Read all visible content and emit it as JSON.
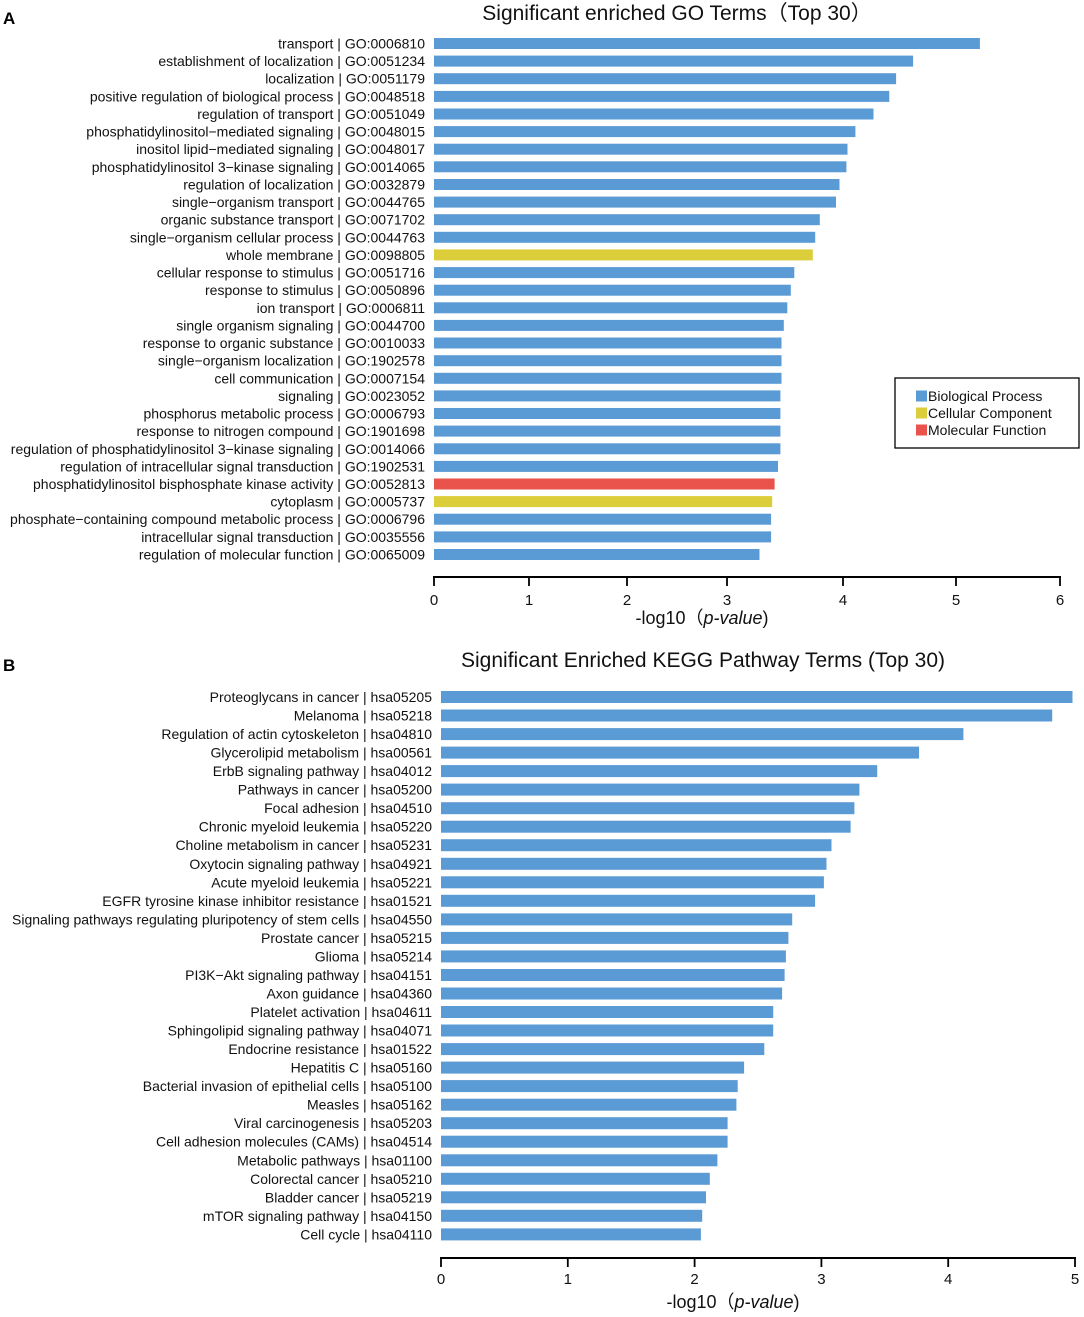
{
  "chart_data": [
    {
      "type": "bar",
      "orientation": "horizontal",
      "panel_label": "A",
      "title": "Significant enriched GO Terms（Top 30）",
      "xlabel": "-log10（p-value)",
      "ylabel": "",
      "xlim": [
        0,
        6
      ],
      "xticks": [
        0,
        1,
        2,
        3,
        4,
        5,
        6
      ],
      "legend_position": "right",
      "legend": [
        {
          "label": "Biological Process",
          "color": "#5b9bd5"
        },
        {
          "label": "Cellular Component",
          "color": "#dccd3a"
        },
        {
          "label": "Molecular Function",
          "color": "#e9534b"
        }
      ],
      "categories": [
        "transport | GO:0006810",
        "establishment of localization | GO:0051234",
        "localization | GO:0051179",
        "positive regulation of biological process | GO:0048518",
        "regulation of transport | GO:0051049",
        "phosphatidylinositol−mediated signaling | GO:0048015",
        "inositol lipid−mediated signaling | GO:0048017",
        "phosphatidylinositol 3−kinase signaling | GO:0014065",
        "regulation of localization | GO:0032879",
        "single−organism transport | GO:0044765",
        "organic substance transport | GO:0071702",
        "single−organism cellular process | GO:0044763",
        "whole membrane | GO:0098805",
        "cellular response to stimulus | GO:0051716",
        "response to stimulus | GO:0050896",
        "ion transport | GO:0006811",
        "single organism signaling | GO:0044700",
        "response to organic substance | GO:0010033",
        "single−organism localization | GO:1902578",
        "cell communication | GO:0007154",
        "signaling | GO:0023052",
        "phosphorus metabolic process | GO:0006793",
        "response to nitrogen compound | GO:1901698",
        "regulation of phosphatidylinositol 3−kinase signaling | GO:0014066",
        "regulation of intracellular signal transduction | GO:1902531",
        "phosphatidylinositol bisphosphate kinase activity | GO:0052813",
        "cytoplasm | GO:0005737",
        "phosphate−containing compound metabolic process | GO:0006796",
        "intracellular signal transduction | GO:0035556",
        "regulation of molecular function | GO:0065009"
      ],
      "values": [
        5.23,
        4.62,
        4.47,
        4.41,
        4.27,
        4.11,
        4.04,
        4.03,
        3.97,
        3.94,
        3.8,
        3.76,
        3.74,
        3.58,
        3.55,
        3.52,
        3.49,
        3.47,
        3.47,
        3.47,
        3.46,
        3.46,
        3.46,
        3.46,
        3.44,
        3.41,
        3.39,
        3.38,
        3.38,
        3.28
      ],
      "groups": [
        0,
        0,
        0,
        0,
        0,
        0,
        0,
        0,
        0,
        0,
        0,
        0,
        1,
        0,
        0,
        0,
        0,
        0,
        0,
        0,
        0,
        0,
        0,
        0,
        0,
        2,
        1,
        0,
        0,
        0
      ]
    },
    {
      "type": "bar",
      "orientation": "horizontal",
      "panel_label": "B",
      "title": "Significant Enriched KEGG Pathway Terms (Top 30)",
      "xlabel": "-log10（p-value)",
      "ylabel": "",
      "xlim": [
        0,
        5
      ],
      "xticks": [
        0,
        1,
        2,
        3,
        4,
        5
      ],
      "bar_color": "#5b9bd5",
      "categories": [
        "Proteoglycans in cancer | hsa05205",
        "Melanoma | hsa05218",
        "Regulation of actin cytoskeleton | hsa04810",
        "Glycerolipid metabolism | hsa00561",
        "ErbB signaling pathway | hsa04012",
        "Pathways in cancer | hsa05200",
        "Focal adhesion | hsa04510",
        "Chronic myeloid leukemia | hsa05220",
        "Choline metabolism in cancer | hsa05231",
        "Oxytocin signaling pathway | hsa04921",
        "Acute myeloid leukemia | hsa05221",
        "EGFR tyrosine kinase inhibitor resistance | hsa01521",
        "Signaling pathways regulating pluripotency of stem cells | hsa04550",
        "Prostate cancer | hsa05215",
        "Glioma | hsa05214",
        "PI3K−Akt signaling pathway | hsa04151",
        "Axon guidance | hsa04360",
        "Platelet activation | hsa04611",
        "Sphingolipid signaling pathway | hsa04071",
        "Endocrine resistance | hsa01522",
        "Hepatitis C | hsa05160",
        "Bacterial invasion of epithelial cells | hsa05100",
        "Measles | hsa05162",
        "Viral carcinogenesis | hsa05203",
        "Cell adhesion molecules (CAMs) | hsa04514",
        "Metabolic pathways | hsa01100",
        "Colorectal cancer | hsa05210",
        "Bladder cancer | hsa05219",
        "mTOR signaling pathway | hsa04150",
        "Cell cycle | hsa04110"
      ],
      "values": [
        4.98,
        4.82,
        4.12,
        3.77,
        3.44,
        3.3,
        3.26,
        3.23,
        3.08,
        3.04,
        3.02,
        2.95,
        2.77,
        2.74,
        2.72,
        2.71,
        2.69,
        2.62,
        2.62,
        2.55,
        2.39,
        2.34,
        2.33,
        2.26,
        2.26,
        2.18,
        2.12,
        2.09,
        2.06,
        2.05
      ]
    }
  ]
}
